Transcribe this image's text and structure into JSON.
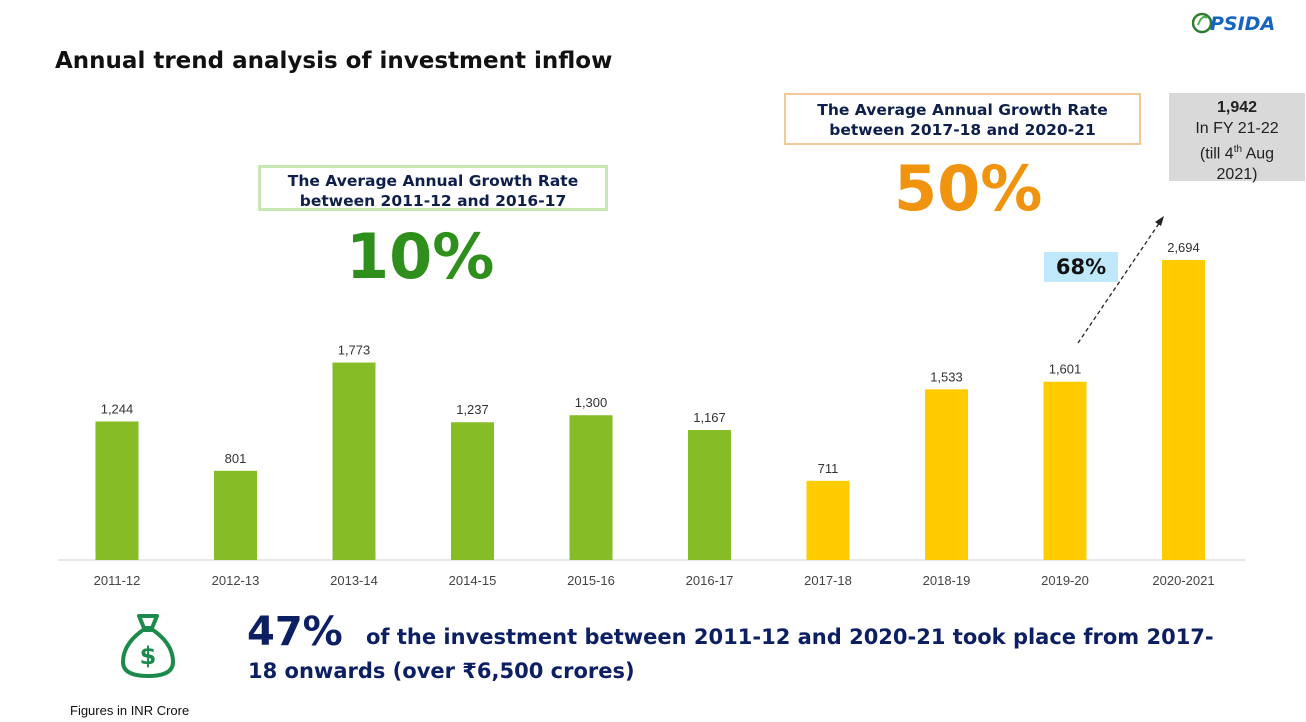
{
  "title": "Annual trend analysis of investment inflow",
  "logo_text": "UPSIDA",
  "growth_box_1": {
    "line1": "The Average Annual Growth Rate",
    "line2": "between 2011-12 and 2016-17",
    "value": "10%"
  },
  "growth_box_2": {
    "line1": "The Average Annual Growth Rate",
    "line2": "between 2017-18 and 2020-21",
    "value": "50%"
  },
  "fy22_box": {
    "value": "1,942",
    "line2": "In FY 21-22",
    "line3_pre": "(till 4",
    "line3_sup": "th",
    "line3_post": " Aug",
    "line4": "2021)"
  },
  "jump_label": "68%",
  "bottom": {
    "big": "47%",
    "text_line1": "of the investment between 2011-12 and 2020-21 took place from 2017-",
    "text_line2": "18 onwards (over ₹6,500 crores)"
  },
  "footnote": "Figures in INR Crore",
  "colors": {
    "green_bar": "#86bc25",
    "yellow_bar": "#ffcc00",
    "green_pct": "#2f8f1c",
    "orange_pct": "#f0930e",
    "navy": "#0d1f63"
  },
  "chart_data": {
    "type": "bar",
    "categories": [
      "2011-12",
      "2012-13",
      "2013-14",
      "2014-15",
      "2015-16",
      "2016-17",
      "2017-18",
      "2018-19",
      "2019-20",
      "2020-2021"
    ],
    "values": [
      1244,
      801,
      1773,
      1237,
      1300,
      1167,
      711,
      1533,
      1601,
      2694
    ],
    "value_labels": [
      "1,244",
      "801",
      "1,773",
      "1,237",
      "1,300",
      "1,167",
      "711",
      "1,533",
      "1,601",
      "2,694"
    ],
    "bar_colors": [
      "#86bc25",
      "#86bc25",
      "#86bc25",
      "#86bc25",
      "#86bc25",
      "#86bc25",
      "#ffcc00",
      "#ffcc00",
      "#ffcc00",
      "#ffcc00"
    ],
    "title": "",
    "xlabel": "",
    "ylabel": "",
    "ylim": [
      0,
      2694
    ]
  }
}
